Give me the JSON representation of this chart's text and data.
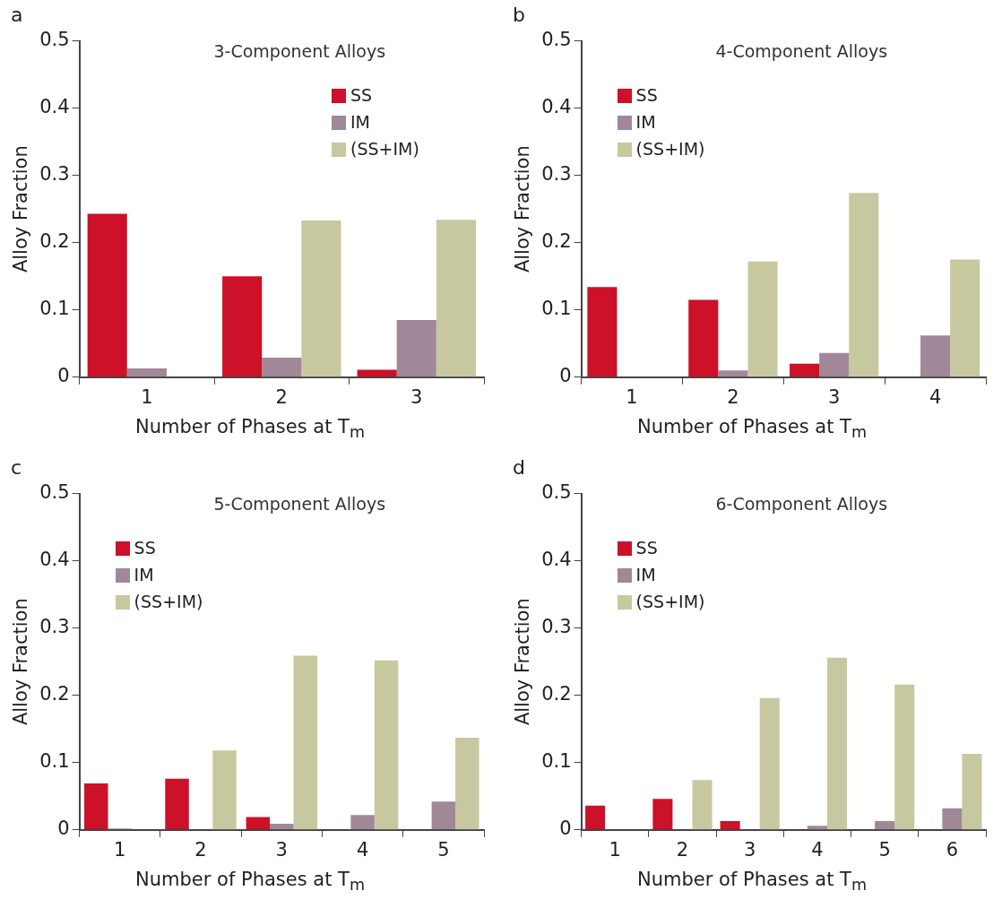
{
  "chart_data": [
    {
      "type": "bar",
      "title": "3-Component Alloys",
      "xlabel": "Number of Phases at T$_{m}$",
      "ylabel": "Alloy Fraction",
      "annotations": [
        "a"
      ],
      "categories": [
        "1",
        "2",
        "3"
      ],
      "ylim": [
        0,
        0.5
      ],
      "yticks": [
        0,
        0.1,
        0.2,
        0.3,
        0.4,
        0.5
      ],
      "grid": false,
      "legend": "top right",
      "series": [
        {
          "name": "SS",
          "color": "#cc1128",
          "values": [
            0.243,
            0.15,
            0.011
          ]
        },
        {
          "name": "IM",
          "color": "#a08898",
          "values": [
            0.013,
            0.029,
            0.085
          ]
        },
        {
          "name": "(SS+IM)",
          "color": "#c8c8a0",
          "values": [
            0,
            0.233,
            0.234
          ]
        }
      ]
    },
    {
      "type": "bar",
      "title": "4-Component Alloys",
      "xlabel": "Number of Phases at T$_{m}$",
      "ylabel": "Alloy Fraction",
      "annotations": [
        "b"
      ],
      "categories": [
        "1",
        "2",
        "3",
        "4"
      ],
      "ylim": [
        0,
        0.5
      ],
      "yticks": [
        0,
        0.1,
        0.2,
        0.3,
        0.4,
        0.5
      ],
      "grid": false,
      "legend": "top left",
      "series": [
        {
          "name": "SS",
          "color": "#cc1128",
          "values": [
            0.134,
            0.115,
            0.02,
            0
          ]
        },
        {
          "name": "IM",
          "color": "#a08898",
          "values": [
            0,
            0.01,
            0.036,
            0.062
          ]
        },
        {
          "name": "(SS+IM)",
          "color": "#c8c8a0",
          "values": [
            0,
            0.172,
            0.274,
            0.175
          ]
        }
      ]
    },
    {
      "type": "bar",
      "title": "5-Component Alloys",
      "xlabel": "Number of Phases at T$_{m}$",
      "ylabel": "Alloy Fraction",
      "annotations": [
        "c"
      ],
      "categories": [
        "1",
        "2",
        "3",
        "4",
        "5"
      ],
      "ylim": [
        0,
        0.5
      ],
      "yticks": [
        0,
        0.1,
        0.2,
        0.3,
        0.4,
        0.5
      ],
      "grid": false,
      "legend": "top left",
      "series": [
        {
          "name": "SS",
          "color": "#cc1128",
          "values": [
            0.069,
            0.076,
            0.019,
            0,
            0
          ]
        },
        {
          "name": "IM",
          "color": "#a08898",
          "values": [
            0.002,
            0,
            0.009,
            0.022,
            0.042
          ]
        },
        {
          "name": "(SS+IM)",
          "color": "#c8c8a0",
          "values": [
            0,
            0.118,
            0.259,
            0.252,
            0.137
          ]
        }
      ]
    },
    {
      "type": "bar",
      "title": "6-Component Alloys",
      "xlabel": "Number of Phases at T$_{m}$",
      "ylabel": "Alloy Fraction",
      "annotations": [
        "d"
      ],
      "categories": [
        "1",
        "2",
        "3",
        "4",
        "5",
        "6"
      ],
      "ylim": [
        0,
        0.5
      ],
      "yticks": [
        0,
        0.1,
        0.2,
        0.3,
        0.4,
        0.5
      ],
      "grid": false,
      "legend": "top left",
      "series": [
        {
          "name": "SS",
          "color": "#cc1128",
          "values": [
            0.036,
            0.046,
            0.013,
            null,
            null,
            0
          ]
        },
        {
          "name": "IM",
          "color": "#a08898",
          "values": [
            null,
            0,
            0,
            0.006,
            0.013,
            0.032
          ]
        },
        {
          "name": "(SS+IM)",
          "color": "#c8c8a0",
          "values": [
            0,
            0.074,
            0.196,
            0.256,
            0.216,
            0.113
          ]
        }
      ]
    }
  ]
}
